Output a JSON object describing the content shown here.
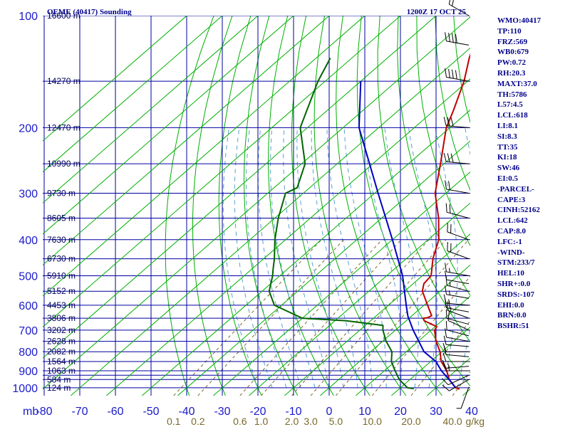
{
  "header": {
    "station": "OEME (40417) Sounding",
    "time": "1200Z 17 OCT 25"
  },
  "indices": [
    "WMO:40417",
    "TP:110",
    "FRZ:569",
    "WB0:679",
    "PW:0.72",
    "RH:20.3",
    "MAXT:37.0",
    "TH:5786",
    "L57:4.5",
    "LCL:618",
    "LI:8.1",
    "SI:8.3",
    "TT:35",
    "KI:18",
    "SW:46",
    "EI:0.5",
    "-PARCEL-",
    "CAPE:3",
    "CINH:52162",
    "LCL:642",
    "CAP:8.0",
    "LFC:-1",
    "-WIND-",
    "STM:233/7",
    "HEL:10",
    "SHR+:0.0",
    "SRDS:-107",
    "EHI:0.0",
    "BRN:0.0",
    "BSHR:51"
  ],
  "colors": {
    "grid": "#0000a0",
    "dry_adiabat": "#00b000",
    "moist_adiabat": "#5aa0d0",
    "mixing_ratio": "#7a6a2a",
    "temperature": "#c00000",
    "dewpoint": "#006400",
    "parcel": "#0000c0",
    "wind_barb": "#000000"
  },
  "chart_data": {
    "type": "skew-t",
    "title": "OEME (40417) Sounding",
    "pressure_levels": [
      100,
      200,
      300,
      400,
      500,
      600,
      700,
      800,
      900,
      1000
    ],
    "pressure_labels": [
      "100",
      "200",
      "300",
      "400",
      "500",
      "600",
      "700",
      "800",
      "900",
      "1000"
    ],
    "isobars_mb": [
      100,
      150,
      200,
      250,
      300,
      350,
      400,
      450,
      500,
      550,
      600,
      650,
      700,
      750,
      800,
      850,
      900,
      925,
      950,
      1000
    ],
    "temp_ticks": [
      -80,
      -70,
      -60,
      -50,
      -40,
      -30,
      -20,
      -10,
      0,
      10,
      20,
      30,
      40
    ],
    "temp_labels": [
      "-80",
      "-70",
      "-60",
      "-50",
      "-40",
      "-30",
      "-20",
      "-10",
      "0",
      "10",
      "20",
      "30",
      "40"
    ],
    "pressure_unit": "mb",
    "altitudes": [
      {
        "p": 100,
        "label": "16600 m"
      },
      {
        "p": 150,
        "label": "14270 m"
      },
      {
        "p": 200,
        "label": "12470 m"
      },
      {
        "p": 250,
        "label": "10990 m"
      },
      {
        "p": 300,
        "label": "9730 m"
      },
      {
        "p": 350,
        "label": "8605 m"
      },
      {
        "p": 400,
        "label": "7630 m"
      },
      {
        "p": 450,
        "label": "6730 m"
      },
      {
        "p": 500,
        "label": "5910 m"
      },
      {
        "p": 550,
        "label": "5152 m"
      },
      {
        "p": 600,
        "label": "4453 m"
      },
      {
        "p": 650,
        "label": "3806 m"
      },
      {
        "p": 700,
        "label": "3202 m"
      },
      {
        "p": 750,
        "label": "2628 m"
      },
      {
        "p": 800,
        "label": "2082 m"
      },
      {
        "p": 850,
        "label": "1564 m"
      },
      {
        "p": 900,
        "label": "1063 m"
      },
      {
        "p": 950,
        "label": "584 m"
      },
      {
        "p": 1000,
        "label": "124 m"
      }
    ],
    "mixing_ratio_values": [
      0.1,
      0.2,
      0.6,
      1.0,
      2.0,
      3.0,
      5.0,
      10.0,
      20.0,
      40.0
    ],
    "mixing_ratio_labels": [
      "0.1",
      "0.2",
      "0.6",
      "1.0",
      "2.0",
      "3.0",
      "5.0",
      "10.0",
      "20.0",
      "40.0"
    ],
    "mixing_ratio_unit": "g/kg",
    "series": [
      {
        "name": "temperature",
        "points": [
          [
            1008,
            37.0
          ],
          [
            1000,
            35.5
          ],
          [
            950,
            31.0
          ],
          [
            900,
            27.5
          ],
          [
            850,
            23.0
          ],
          [
            800,
            19.5
          ],
          [
            750,
            15.0
          ],
          [
            700,
            11.0
          ],
          [
            685,
            10.5
          ],
          [
            660,
            5.0
          ],
          [
            650,
            4.0
          ],
          [
            648,
            5.0
          ],
          [
            640,
            5.5
          ],
          [
            600,
            1.0
          ],
          [
            550,
            -5.0
          ],
          [
            525,
            -7.0
          ],
          [
            500,
            -7.5
          ],
          [
            450,
            -12.5
          ],
          [
            400,
            -17.0
          ],
          [
            350,
            -24.0
          ],
          [
            300,
            -33.0
          ],
          [
            250,
            -41.0
          ],
          [
            200,
            -51.0
          ],
          [
            180,
            -54.5
          ],
          [
            150,
            -61.0
          ],
          [
            130,
            -67.0
          ],
          [
            110,
            -73.0
          ],
          [
            100,
            -76.0
          ]
        ]
      },
      {
        "name": "dewpoint",
        "points": [
          [
            1005,
            24.0
          ],
          [
            1000,
            22.0
          ],
          [
            950,
            17.0
          ],
          [
            900,
            13.0
          ],
          [
            850,
            9.0
          ],
          [
            800,
            6.0
          ],
          [
            750,
            1.0
          ],
          [
            700,
            -3.5
          ],
          [
            680,
            -5.0
          ],
          [
            660,
            -17.0
          ],
          [
            650,
            -30.0
          ],
          [
            600,
            -42.0
          ],
          [
            550,
            -48.0
          ],
          [
            500,
            -52.0
          ],
          [
            480,
            -54.0
          ],
          [
            450,
            -57.0
          ],
          [
            400,
            -63.0
          ],
          [
            350,
            -69.0
          ],
          [
            300,
            -75.0
          ],
          [
            290,
            -73.5
          ],
          [
            250,
            -79.0
          ],
          [
            200,
            -92.0
          ],
          [
            150,
            -102.0
          ],
          [
            130,
            -106.0
          ]
        ]
      },
      {
        "name": "parcel",
        "points": [
          [
            1000,
            35.5
          ],
          [
            950,
            31.0
          ],
          [
            900,
            26.0
          ],
          [
            850,
            21.5
          ],
          [
            800,
            15.0
          ],
          [
            700,
            5.0
          ],
          [
            642,
            -1.0
          ],
          [
            600,
            -5.0
          ],
          [
            500,
            -15.5
          ],
          [
            400,
            -30.0
          ],
          [
            300,
            -49.0
          ],
          [
            200,
            -75.5
          ],
          [
            150,
            -90.0
          ]
        ]
      }
    ],
    "wind_barbs": [
      {
        "p": 995,
        "dir": 200,
        "kt": 5
      },
      {
        "p": 950,
        "dir": 240,
        "kt": 10
      },
      {
        "p": 925,
        "dir": 245,
        "kt": 10
      },
      {
        "p": 900,
        "dir": 270,
        "kt": 15
      },
      {
        "p": 875,
        "dir": 265,
        "kt": 15
      },
      {
        "p": 850,
        "dir": 270,
        "kt": 10
      },
      {
        "p": 825,
        "dir": 275,
        "kt": 10
      },
      {
        "p": 800,
        "dir": 270,
        "kt": 10
      },
      {
        "p": 775,
        "dir": 275,
        "kt": 10
      },
      {
        "p": 750,
        "dir": 280,
        "kt": 10
      },
      {
        "p": 725,
        "dir": 285,
        "kt": 10
      },
      {
        "p": 700,
        "dir": 295,
        "kt": 10
      },
      {
        "p": 675,
        "dir": 285,
        "kt": 10
      },
      {
        "p": 650,
        "dir": 290,
        "kt": 15
      },
      {
        "p": 625,
        "dir": 280,
        "kt": 15
      },
      {
        "p": 600,
        "dir": 275,
        "kt": 15
      },
      {
        "p": 575,
        "dir": 280,
        "kt": 15
      },
      {
        "p": 550,
        "dir": 285,
        "kt": 15
      },
      {
        "p": 525,
        "dir": 280,
        "kt": 10
      },
      {
        "p": 500,
        "dir": 280,
        "kt": 15
      },
      {
        "p": 450,
        "dir": 290,
        "kt": 20
      },
      {
        "p": 400,
        "dir": 290,
        "kt": 20
      },
      {
        "p": 350,
        "dir": 285,
        "kt": 20
      },
      {
        "p": 300,
        "dir": 280,
        "kt": 20
      },
      {
        "p": 250,
        "dir": 275,
        "kt": 30
      },
      {
        "p": 200,
        "dir": 275,
        "kt": 30
      },
      {
        "p": 150,
        "dir": 280,
        "kt": 40
      },
      {
        "p": 120,
        "dir": 280,
        "kt": 40
      },
      {
        "p": 100,
        "dir": 300,
        "kt": 20
      }
    ]
  }
}
